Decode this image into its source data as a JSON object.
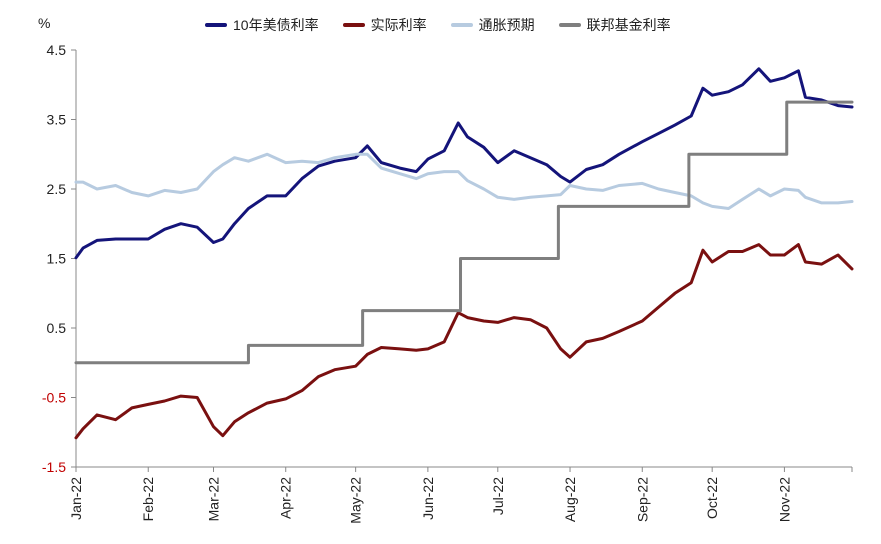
{
  "chart_data": {
    "type": "line",
    "unit_label": "%",
    "ylim": [
      -1.5,
      4.5
    ],
    "yticks": [
      "4.5",
      "3.5",
      "2.5",
      "1.5",
      "0.5",
      "-0.5",
      "-1.5"
    ],
    "x_ticks": [
      "Jan-22",
      "Feb-22",
      "Mar-22",
      "Apr-22",
      "May-22",
      "Jun-22",
      "Jul-22",
      "Aug-22",
      "Sep-22",
      "Oct-22",
      "Nov-22"
    ],
    "series": [
      {
        "name": "10年美债利率",
        "color": "#14147a",
        "points": [
          [
            "2022-01-01",
            1.51
          ],
          [
            "2022-01-04",
            1.65
          ],
          [
            "2022-01-10",
            1.76
          ],
          [
            "2022-01-18",
            1.78
          ],
          [
            "2022-01-25",
            1.78
          ],
          [
            "2022-02-01",
            1.78
          ],
          [
            "2022-02-08",
            1.92
          ],
          [
            "2022-02-15",
            2.0
          ],
          [
            "2022-02-22",
            1.95
          ],
          [
            "2022-03-01",
            1.73
          ],
          [
            "2022-03-05",
            1.78
          ],
          [
            "2022-03-10",
            2.0
          ],
          [
            "2022-03-16",
            2.22
          ],
          [
            "2022-03-24",
            2.4
          ],
          [
            "2022-04-01",
            2.4
          ],
          [
            "2022-04-08",
            2.65
          ],
          [
            "2022-04-15",
            2.83
          ],
          [
            "2022-04-22",
            2.9
          ],
          [
            "2022-05-01",
            2.95
          ],
          [
            "2022-05-06",
            3.12
          ],
          [
            "2022-05-12",
            2.88
          ],
          [
            "2022-05-20",
            2.8
          ],
          [
            "2022-05-27",
            2.75
          ],
          [
            "2022-06-01",
            2.93
          ],
          [
            "2022-06-08",
            3.05
          ],
          [
            "2022-06-14",
            3.45
          ],
          [
            "2022-06-18",
            3.25
          ],
          [
            "2022-06-25",
            3.1
          ],
          [
            "2022-07-01",
            2.88
          ],
          [
            "2022-07-08",
            3.05
          ],
          [
            "2022-07-15",
            2.95
          ],
          [
            "2022-07-22",
            2.85
          ],
          [
            "2022-07-28",
            2.68
          ],
          [
            "2022-08-01",
            2.6
          ],
          [
            "2022-08-08",
            2.78
          ],
          [
            "2022-08-15",
            2.85
          ],
          [
            "2022-08-22",
            3.0
          ],
          [
            "2022-09-01",
            3.18
          ],
          [
            "2022-09-08",
            3.3
          ],
          [
            "2022-09-15",
            3.42
          ],
          [
            "2022-09-22",
            3.55
          ],
          [
            "2022-09-27",
            3.95
          ],
          [
            "2022-10-01",
            3.85
          ],
          [
            "2022-10-08",
            3.9
          ],
          [
            "2022-10-14",
            4.0
          ],
          [
            "2022-10-21",
            4.23
          ],
          [
            "2022-10-26",
            4.05
          ],
          [
            "2022-11-01",
            4.1
          ],
          [
            "2022-11-07",
            4.2
          ],
          [
            "2022-11-10",
            3.82
          ],
          [
            "2022-11-17",
            3.78
          ],
          [
            "2022-11-24",
            3.7
          ],
          [
            "2022-11-30",
            3.68
          ]
        ]
      },
      {
        "name": "实际利率",
        "color": "#7a1010",
        "points": [
          [
            "2022-01-01",
            -1.08
          ],
          [
            "2022-01-04",
            -0.95
          ],
          [
            "2022-01-10",
            -0.75
          ],
          [
            "2022-01-18",
            -0.82
          ],
          [
            "2022-01-25",
            -0.65
          ],
          [
            "2022-02-01",
            -0.6
          ],
          [
            "2022-02-08",
            -0.55
          ],
          [
            "2022-02-15",
            -0.48
          ],
          [
            "2022-02-22",
            -0.5
          ],
          [
            "2022-03-01",
            -0.92
          ],
          [
            "2022-03-05",
            -1.05
          ],
          [
            "2022-03-10",
            -0.85
          ],
          [
            "2022-03-16",
            -0.72
          ],
          [
            "2022-03-24",
            -0.58
          ],
          [
            "2022-04-01",
            -0.52
          ],
          [
            "2022-04-08",
            -0.4
          ],
          [
            "2022-04-15",
            -0.2
          ],
          [
            "2022-04-22",
            -0.1
          ],
          [
            "2022-05-01",
            -0.05
          ],
          [
            "2022-05-06",
            0.12
          ],
          [
            "2022-05-12",
            0.22
          ],
          [
            "2022-05-20",
            0.2
          ],
          [
            "2022-05-27",
            0.18
          ],
          [
            "2022-06-01",
            0.2
          ],
          [
            "2022-06-08",
            0.3
          ],
          [
            "2022-06-14",
            0.72
          ],
          [
            "2022-06-18",
            0.65
          ],
          [
            "2022-06-25",
            0.6
          ],
          [
            "2022-07-01",
            0.58
          ],
          [
            "2022-07-08",
            0.65
          ],
          [
            "2022-07-15",
            0.62
          ],
          [
            "2022-07-22",
            0.5
          ],
          [
            "2022-07-28",
            0.2
          ],
          [
            "2022-08-01",
            0.08
          ],
          [
            "2022-08-08",
            0.3
          ],
          [
            "2022-08-15",
            0.35
          ],
          [
            "2022-08-22",
            0.45
          ],
          [
            "2022-09-01",
            0.6
          ],
          [
            "2022-09-08",
            0.8
          ],
          [
            "2022-09-15",
            1.0
          ],
          [
            "2022-09-22",
            1.15
          ],
          [
            "2022-09-27",
            1.62
          ],
          [
            "2022-10-01",
            1.45
          ],
          [
            "2022-10-08",
            1.6
          ],
          [
            "2022-10-14",
            1.6
          ],
          [
            "2022-10-21",
            1.7
          ],
          [
            "2022-10-26",
            1.55
          ],
          [
            "2022-11-01",
            1.55
          ],
          [
            "2022-11-07",
            1.7
          ],
          [
            "2022-11-10",
            1.45
          ],
          [
            "2022-11-17",
            1.42
          ],
          [
            "2022-11-24",
            1.55
          ],
          [
            "2022-11-30",
            1.35
          ]
        ]
      },
      {
        "name": "通胀预期",
        "color": "#b7cbe0",
        "points": [
          [
            "2022-01-01",
            2.6
          ],
          [
            "2022-01-04",
            2.6
          ],
          [
            "2022-01-10",
            2.5
          ],
          [
            "2022-01-18",
            2.55
          ],
          [
            "2022-01-25",
            2.45
          ],
          [
            "2022-02-01",
            2.4
          ],
          [
            "2022-02-08",
            2.48
          ],
          [
            "2022-02-15",
            2.45
          ],
          [
            "2022-02-22",
            2.5
          ],
          [
            "2022-03-01",
            2.75
          ],
          [
            "2022-03-05",
            2.85
          ],
          [
            "2022-03-10",
            2.95
          ],
          [
            "2022-03-16",
            2.9
          ],
          [
            "2022-03-24",
            3.0
          ],
          [
            "2022-04-01",
            2.88
          ],
          [
            "2022-04-08",
            2.9
          ],
          [
            "2022-04-15",
            2.88
          ],
          [
            "2022-04-22",
            2.95
          ],
          [
            "2022-05-01",
            3.0
          ],
          [
            "2022-05-06",
            3.0
          ],
          [
            "2022-05-12",
            2.8
          ],
          [
            "2022-05-20",
            2.72
          ],
          [
            "2022-05-27",
            2.65
          ],
          [
            "2022-06-01",
            2.72
          ],
          [
            "2022-06-08",
            2.75
          ],
          [
            "2022-06-14",
            2.75
          ],
          [
            "2022-06-18",
            2.62
          ],
          [
            "2022-06-25",
            2.5
          ],
          [
            "2022-07-01",
            2.38
          ],
          [
            "2022-07-08",
            2.35
          ],
          [
            "2022-07-15",
            2.38
          ],
          [
            "2022-07-22",
            2.4
          ],
          [
            "2022-07-28",
            2.42
          ],
          [
            "2022-08-01",
            2.55
          ],
          [
            "2022-08-08",
            2.5
          ],
          [
            "2022-08-15",
            2.48
          ],
          [
            "2022-08-22",
            2.55
          ],
          [
            "2022-09-01",
            2.58
          ],
          [
            "2022-09-08",
            2.5
          ],
          [
            "2022-09-15",
            2.45
          ],
          [
            "2022-09-22",
            2.4
          ],
          [
            "2022-09-27",
            2.3
          ],
          [
            "2022-10-01",
            2.25
          ],
          [
            "2022-10-08",
            2.22
          ],
          [
            "2022-10-14",
            2.35
          ],
          [
            "2022-10-21",
            2.5
          ],
          [
            "2022-10-26",
            2.4
          ],
          [
            "2022-11-01",
            2.5
          ],
          [
            "2022-11-07",
            2.48
          ],
          [
            "2022-11-10",
            2.38
          ],
          [
            "2022-11-17",
            2.3
          ],
          [
            "2022-11-24",
            2.3
          ],
          [
            "2022-11-30",
            2.32
          ]
        ]
      },
      {
        "name": "联邦基金利率",
        "color": "#7f7f7f",
        "step": true,
        "points": [
          [
            "2022-01-01",
            0.0
          ],
          [
            "2022-03-16",
            0.25
          ],
          [
            "2022-05-04",
            0.75
          ],
          [
            "2022-06-15",
            1.5
          ],
          [
            "2022-07-27",
            2.25
          ],
          [
            "2022-09-21",
            3.0
          ],
          [
            "2022-11-02",
            3.75
          ],
          [
            "2022-11-30",
            3.75
          ]
        ]
      }
    ]
  }
}
